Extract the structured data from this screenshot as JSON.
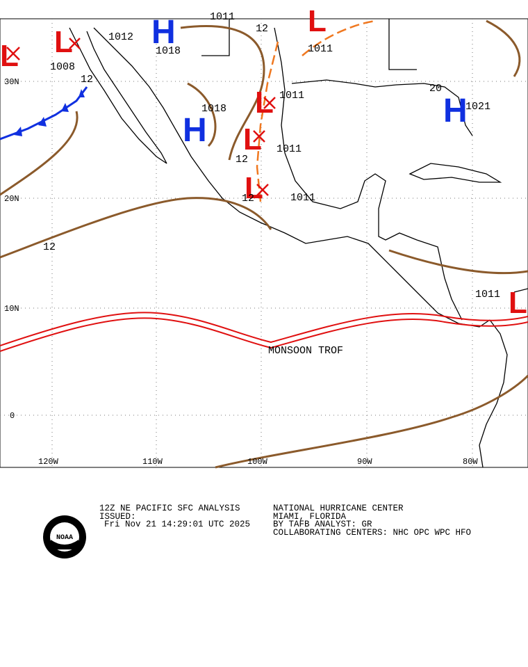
{
  "map": {
    "lat_labels": [
      "30N",
      "20N",
      "10N",
      "0"
    ],
    "lon_labels": [
      "120W",
      "110W",
      "100W",
      "90W",
      "80W"
    ],
    "highs": [
      "H",
      "H",
      "H"
    ],
    "lows": [
      "L",
      "L",
      "L",
      "L",
      "L",
      "L",
      "L"
    ],
    "isobar_labels": [
      "1011",
      "1012",
      "1008",
      "12",
      "1018",
      "1018",
      "12",
      "1011",
      "1011",
      "12",
      "1011",
      "1011",
      "12",
      "1021",
      "20",
      "12",
      "1011"
    ],
    "trough_label": "MONSOON TROF"
  },
  "footer": {
    "product": "12Z NE PACIFIC SFC ANALYSIS",
    "issued": "ISSUED:",
    "time": "Fri Nov 21 14:29:01 UTC 2025",
    "center": "NATIONAL HURRICANE CENTER",
    "location": "MIAMI, FLORIDA",
    "analyst": "BY TAFB ANALYST: GR",
    "collab": "COLLABORATING CENTERS: NHC OPC WPC HFO",
    "logo": "NOAA"
  }
}
